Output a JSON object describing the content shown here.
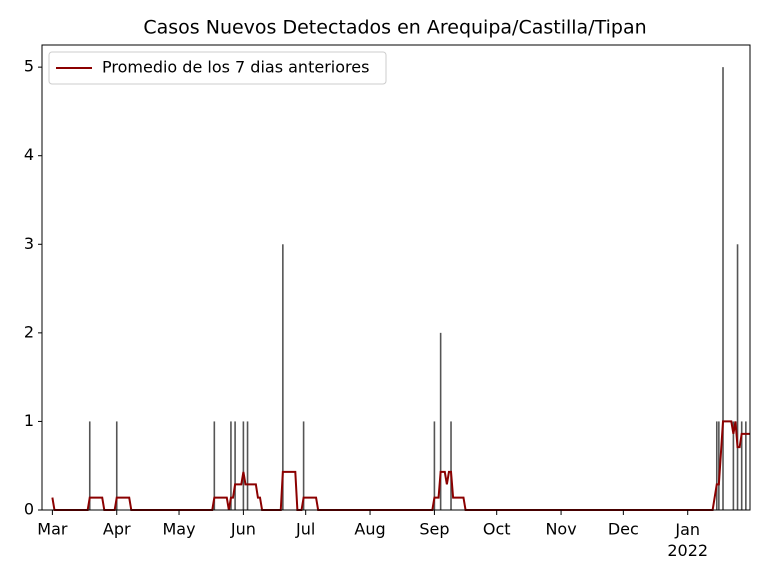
{
  "chart_data": {
    "type": "bar",
    "title": "Casos Nuevos Detectados en Arequipa/Castilla/Tipan",
    "x": [
      18,
      31,
      78,
      86,
      88,
      92,
      94,
      111,
      121,
      184,
      187,
      192,
      320,
      321,
      323,
      328,
      330,
      332,
      334
    ],
    "values": [
      1,
      1,
      1,
      1,
      1,
      1,
      1,
      3,
      1,
      1,
      2,
      1,
      1,
      1,
      5,
      1,
      3,
      1,
      1
    ],
    "color": "#555555",
    "line": {
      "type": "line",
      "name": "Promedio de los 7 dias anteriores",
      "color": "#8b0000",
      "x": [
        0,
        1,
        17,
        18,
        24,
        25,
        30,
        31,
        37,
        38,
        77,
        78,
        84,
        85,
        86,
        87,
        88,
        91,
        92,
        93,
        98,
        99,
        100,
        101,
        110,
        111,
        117,
        118,
        120,
        121,
        127,
        128,
        183,
        184,
        186,
        187,
        189,
        190,
        191,
        192,
        193,
        198,
        199,
        318,
        320,
        321,
        323,
        327,
        328,
        329,
        330,
        331,
        332,
        336
      ],
      "values": [
        0.14,
        0,
        0,
        0.14,
        0.14,
        0,
        0,
        0.14,
        0.14,
        0,
        0,
        0.14,
        0.14,
        0,
        0.14,
        0.14,
        0.29,
        0.29,
        0.43,
        0.29,
        0.29,
        0.14,
        0.14,
        0,
        0,
        0.43,
        0.43,
        0,
        0,
        0.14,
        0.14,
        0,
        0,
        0.14,
        0.14,
        0.43,
        0.43,
        0.29,
        0.43,
        0.43,
        0.14,
        0.14,
        0,
        0,
        0.29,
        0.29,
        1,
        1,
        0.86,
        1,
        0.71,
        0.71,
        0.86,
        0.86
      ]
    },
    "xlim": [
      -5,
      336
    ],
    "ylim": [
      0,
      5.25
    ],
    "xticks": [
      {
        "value": 0,
        "label": "Mar"
      },
      {
        "value": 31,
        "label": "Apr"
      },
      {
        "value": 61,
        "label": "May"
      },
      {
        "value": 92,
        "label": "Jun"
      },
      {
        "value": 122,
        "label": "Jul"
      },
      {
        "value": 153,
        "label": "Aug"
      },
      {
        "value": 184,
        "label": "Sep"
      },
      {
        "value": 214,
        "label": "Oct"
      },
      {
        "value": 245,
        "label": "Nov"
      },
      {
        "value": 275,
        "label": "Dec"
      },
      {
        "value": 306,
        "label": "Jan\n2022"
      }
    ],
    "yticks": [
      0,
      1,
      2,
      3,
      4,
      5
    ],
    "legend": "upper left"
  }
}
